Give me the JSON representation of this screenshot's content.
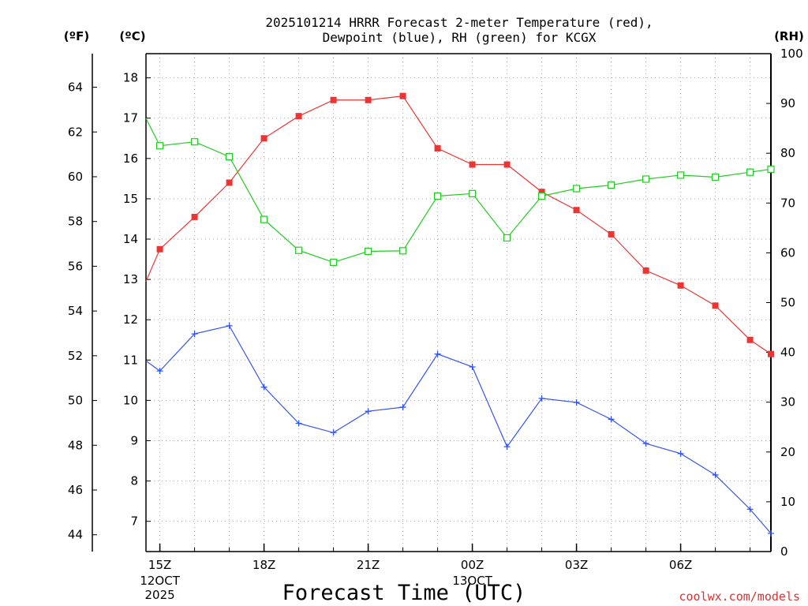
{
  "chart_data": {
    "type": "line",
    "title_lines": [
      "2025101214 HRRR Forecast 2-meter Temperature (red),",
      "Dewpoint (blue), RH (green) for KCGX"
    ],
    "xlabel": "Forecast Time (UTC)",
    "credit": "coolwx.com/models",
    "units": {
      "fahrenheit": "(ºF)",
      "celsius": "(ºC)",
      "rh": "(RH)"
    },
    "hour_range": [
      14.6,
      32.6
    ],
    "celsius_range": [
      6.25,
      18.6
    ],
    "fahrenheit_range": [
      43.25,
      65.5
    ],
    "rh_range": [
      0,
      100
    ],
    "celsius_ticks": [
      7,
      8,
      9,
      10,
      11,
      12,
      13,
      14,
      15,
      16,
      17,
      18
    ],
    "fahrenheit_ticks": [
      44,
      46,
      48,
      50,
      52,
      54,
      56,
      58,
      60,
      62,
      64
    ],
    "rh_ticks": [
      0,
      10,
      20,
      30,
      40,
      50,
      60,
      70,
      80,
      90,
      100
    ],
    "x_ticks": [
      {
        "hour": 15,
        "label": "15Z",
        "sub": [
          "12OCT",
          "2025"
        ]
      },
      {
        "hour": 18,
        "label": "18Z",
        "sub": []
      },
      {
        "hour": 21,
        "label": "21Z",
        "sub": []
      },
      {
        "hour": 24,
        "label": "00Z",
        "sub": [
          "13OCT"
        ]
      },
      {
        "hour": 27,
        "label": "03Z",
        "sub": []
      },
      {
        "hour": 30,
        "label": "06Z",
        "sub": []
      }
    ],
    "hours": [
      14.6,
      15,
      16,
      17,
      18,
      19,
      20,
      21,
      22,
      23,
      24,
      25,
      26,
      27,
      28,
      29,
      30,
      31,
      32,
      32.6
    ],
    "series": [
      {
        "name": "Temperature",
        "unit": "C",
        "color": "#ee3333",
        "marker": "filled-square",
        "values": [
          12.95,
          13.75,
          14.55,
          15.4,
          16.5,
          17.05,
          17.45,
          17.45,
          17.55,
          16.25,
          15.85,
          15.85,
          15.17,
          14.72,
          14.12,
          13.22,
          12.85,
          12.35,
          11.5,
          11.15
        ]
      },
      {
        "name": "Dewpoint",
        "unit": "C",
        "color": "#3355ee",
        "marker": "plus",
        "values": [
          10.98,
          10.73,
          11.65,
          11.85,
          10.33,
          9.43,
          9.2,
          9.73,
          9.83,
          11.15,
          10.83,
          8.85,
          10.05,
          9.95,
          9.53,
          8.93,
          8.68,
          8.15,
          7.3,
          6.7
        ]
      },
      {
        "name": "RH",
        "unit": "%",
        "color": "#22cc22",
        "marker": "open-square",
        "values": [
          87.0,
          81.5,
          82.3,
          79.3,
          66.7,
          60.5,
          58.1,
          60.3,
          60.4,
          71.4,
          71.9,
          63.0,
          71.4,
          72.9,
          73.6,
          74.8,
          75.6,
          75.2,
          76.2,
          76.8
        ]
      }
    ]
  }
}
